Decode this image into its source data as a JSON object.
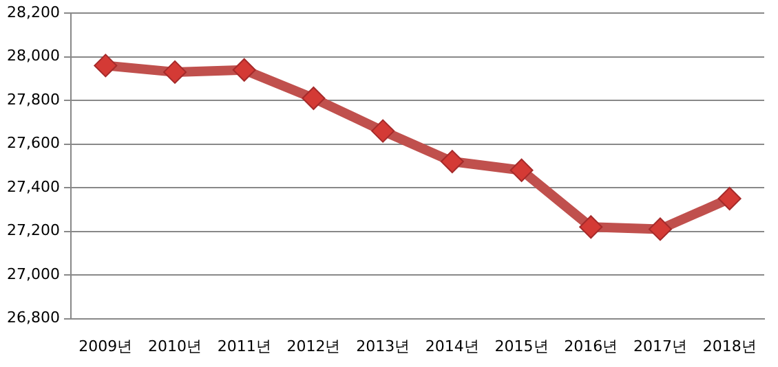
{
  "chart_data": {
    "type": "line",
    "categories": [
      "2009년",
      "2010년",
      "2011년",
      "2012년",
      "2013년",
      "2014년",
      "2015년",
      "2016년",
      "2017년",
      "2018년"
    ],
    "series": [
      {
        "color": "#c0504d",
        "values": [
          27960,
          27930,
          27940,
          27810,
          27660,
          27520,
          27480,
          27220,
          27210,
          27350
        ]
      }
    ],
    "ylim": [
      26800,
      28200
    ],
    "yticks": [
      {
        "value": 26800,
        "label": "26,800"
      },
      {
        "value": 27000,
        "label": "27,000"
      },
      {
        "value": 27200,
        "label": "27,200"
      },
      {
        "value": 27400,
        "label": "27,400"
      },
      {
        "value": 27600,
        "label": "27,600"
      },
      {
        "value": 27800,
        "label": "27,800"
      },
      {
        "value": 28000,
        "label": "28,000"
      },
      {
        "value": 28200,
        "label": "28,200"
      }
    ],
    "grid": "y",
    "marker": "diamond",
    "line_style": "solid",
    "legend": false
  }
}
